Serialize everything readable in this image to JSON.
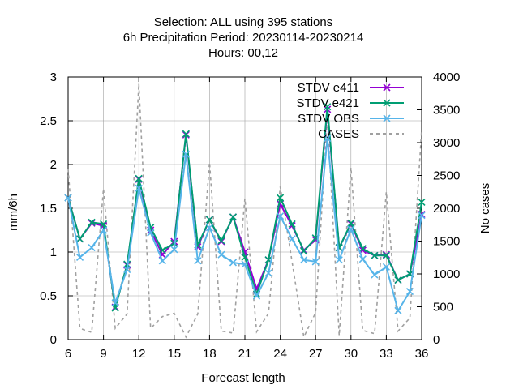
{
  "chart_data": {
    "type": "line",
    "title_lines": [
      "Selection: ALL using   395 stations",
      "6h Precipitation   Period: 20230114-20230214",
      "Hours:  00,12"
    ],
    "xlabel": "Forecast length",
    "ylabel": "mm/6h",
    "y2label": "No cases",
    "xlim": [
      6,
      36
    ],
    "ylim": [
      0,
      3
    ],
    "y2lim": [
      0,
      4000
    ],
    "xticks": [
      "6",
      "9",
      "12",
      "15",
      "18",
      "21",
      "24",
      "27",
      "30",
      "33",
      "36"
    ],
    "yticks": [
      "0",
      "0.5",
      "1",
      "1.5",
      "2",
      "2.5",
      "3"
    ],
    "y2ticks": [
      "0",
      "500",
      "1000",
      "1500",
      "2000",
      "2500",
      "3000",
      "3500",
      "4000"
    ],
    "legend_position": "top-right",
    "grid": true,
    "x": [
      6,
      7,
      8,
      9,
      10,
      11,
      12,
      13,
      14,
      15,
      16,
      17,
      18,
      19,
      20,
      21,
      22,
      23,
      24,
      25,
      26,
      27,
      28,
      29,
      30,
      31,
      32,
      33,
      34,
      35,
      36
    ],
    "series": [
      {
        "name": "STDV e411",
        "color": "#9400d3",
        "marker": "x",
        "axis": "y1",
        "values": [
          1.62,
          1.15,
          1.33,
          1.3,
          0.37,
          0.85,
          1.83,
          1.25,
          0.97,
          1.12,
          2.34,
          1.06,
          1.37,
          1.12,
          1.4,
          1.0,
          0.58,
          0.91,
          1.55,
          1.3,
          1.02,
          1.14,
          2.63,
          1.05,
          1.32,
          1.02,
          0.96,
          0.97,
          0.68,
          0.75,
          1.43
        ]
      },
      {
        "name": "STDV e421",
        "color": "#009e73",
        "marker": "x",
        "axis": "y1",
        "values": [
          1.62,
          1.15,
          1.34,
          1.32,
          0.36,
          0.86,
          1.84,
          1.28,
          1.02,
          1.1,
          2.35,
          1.08,
          1.37,
          1.13,
          1.4,
          0.94,
          0.52,
          0.91,
          1.62,
          1.32,
          1.01,
          1.16,
          2.66,
          1.05,
          1.33,
          1.04,
          0.96,
          0.96,
          0.68,
          0.75,
          1.57
        ]
      },
      {
        "name": "STDV OBS",
        "color": "#56b4e9",
        "marker": "x",
        "axis": "y1",
        "values": [
          1.62,
          0.94,
          1.05,
          1.25,
          0.42,
          0.8,
          1.73,
          1.22,
          0.9,
          1.03,
          2.12,
          0.9,
          1.28,
          0.97,
          0.88,
          0.86,
          0.5,
          0.76,
          1.41,
          1.15,
          0.91,
          0.89,
          2.3,
          0.91,
          1.26,
          0.92,
          0.74,
          0.83,
          0.33,
          0.55,
          1.42
        ]
      },
      {
        "name": "CASES",
        "color": "#a0a0a0",
        "dashed": true,
        "axis": "y2",
        "values": [
          2600,
          170,
          110,
          2300,
          170,
          390,
          3900,
          170,
          350,
          400,
          40,
          390,
          2700,
          130,
          100,
          2150,
          120,
          400,
          2330,
          1190,
          40,
          410,
          3380,
          60,
          2620,
          140,
          90,
          2250,
          130,
          330,
          3200
        ]
      }
    ]
  }
}
